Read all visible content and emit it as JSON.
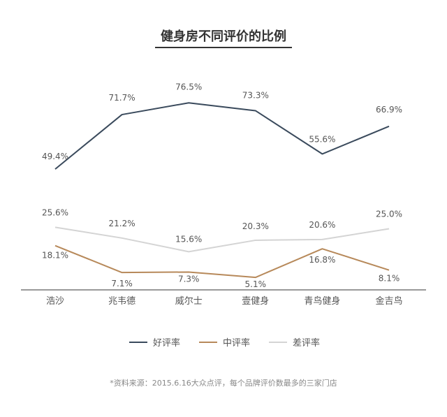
{
  "title": "健身房不同评价的比例",
  "note": "*资料来源：2015.6.16大众点评，每个品牌评价数最多的三家门店",
  "colors": {
    "good": "#3a4a5c",
    "medium": "#b7895a",
    "bad": "#d4d4d4",
    "axis": "#333333",
    "label": "#555555"
  },
  "chart_data": {
    "type": "line",
    "title": "健身房不同评价的比例",
    "categories": [
      "浩沙",
      "兆韦德",
      "威尔士",
      "壹健身",
      "青鸟健身",
      "金吉鸟"
    ],
    "series": [
      {
        "name": "好评率",
        "values": [
          49.4,
          71.7,
          76.5,
          73.3,
          55.6,
          66.9
        ],
        "labels": [
          "49.4%",
          "71.7%",
          "76.5%",
          "73.3%",
          "55.6%",
          "66.9%"
        ]
      },
      {
        "name": "中评率",
        "values": [
          18.1,
          7.1,
          7.3,
          5.1,
          16.8,
          8.1
        ],
        "labels": [
          "18.1%",
          "7.1%",
          "7.3%",
          "5.1%",
          "16.8%",
          "8.1%"
        ]
      },
      {
        "name": "差评率",
        "values": [
          25.6,
          21.2,
          15.6,
          20.3,
          20.6,
          25.0
        ],
        "labels": [
          "25.6%",
          "21.2%",
          "15.6%",
          "20.3%",
          "20.6%",
          "25.0%"
        ]
      }
    ],
    "ylim": [
      0,
      90
    ],
    "grid": false,
    "legend_position": "bottom"
  }
}
